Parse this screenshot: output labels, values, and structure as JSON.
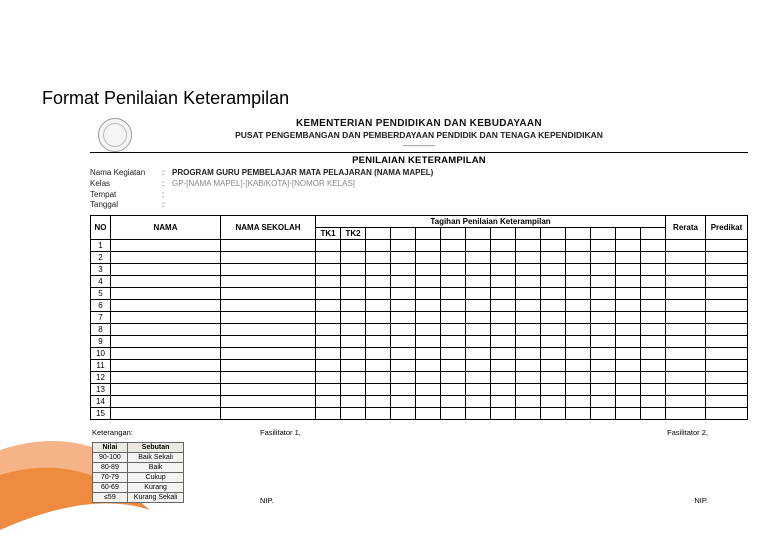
{
  "page_title": "Format Penilaian Keterampilan",
  "header": {
    "ministry": "KEMENTERIAN PENDIDIKAN DAN KEBUDAYAAN",
    "agency": "PUSAT PENGEMBANGAN DAN PEMBERDAYAAN PENDIDIK DAN TENAGA KEPENDIDIKAN",
    "dashes": "————",
    "assessment_title": "PENILAIAN KETERAMPILAN"
  },
  "meta": {
    "rows": [
      {
        "label": "Nama Kegiatan",
        "value": "PROGRAM GURU PEMBELAJAR MATA PELAJARAN (NAMA MAPEL)",
        "dim": false
      },
      {
        "label": "Kelas",
        "value": "GP-[NAMA MAPEL]-[KAB/KOTA]-[NOMOR KELAS]",
        "dim": true
      },
      {
        "label": "Tempat",
        "value": "",
        "dim": false
      },
      {
        "label": "Tanggal",
        "value": "",
        "dim": false
      }
    ]
  },
  "table": {
    "columns": {
      "no": "NO",
      "nama": "NAMA",
      "sekolah": "NAMA SEKOLAH",
      "tagihan_header": "Tagihan Penilaian Keterampilan",
      "tk1": "TK1",
      "tk2": "TK2",
      "rerata": "Rerata",
      "predikat": "Predikat"
    },
    "num_tagihan_cols": 14,
    "rows": [
      1,
      2,
      3,
      4,
      5,
      6,
      7,
      8,
      9,
      10,
      11,
      12,
      13,
      14,
      15
    ]
  },
  "footer": {
    "keterangan": "Keterangan:",
    "fasilitator1": "Fasilitator 1,",
    "fasilitator2": "Fasilitator 2,",
    "nip": "NIP.",
    "grades": {
      "columns": [
        "Nilai",
        "Sebutan"
      ],
      "rows": [
        [
          "90-100",
          "Baik Sekali"
        ],
        [
          "80-89",
          "Baik"
        ],
        [
          "70-79",
          "Cukup"
        ],
        [
          "60-69",
          "Kurang"
        ],
        [
          "≤59",
          "Kurang Sekali"
        ]
      ]
    }
  },
  "colors": {
    "text": "#000000",
    "border": "#000000",
    "grade_bg": "#f5f3f0",
    "grade_header_bg": "#ece8e2",
    "swoosh": "#f08a3c"
  }
}
